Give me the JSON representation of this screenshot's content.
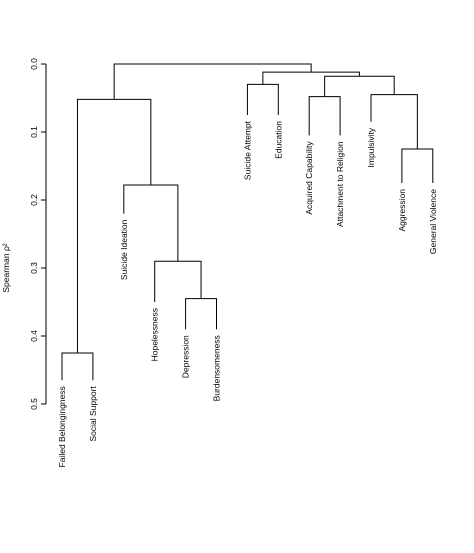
{
  "chart_data": {
    "type": "dendrogram",
    "ylabel": "Spearman ρ²",
    "ylim": [
      0,
      0.5
    ],
    "y_reversed": true,
    "y_ticks": [
      {
        "value": 0.0,
        "label": "0.0"
      },
      {
        "value": 0.1,
        "label": "0.1"
      },
      {
        "value": 0.2,
        "label": "0.2"
      },
      {
        "value": 0.3,
        "label": "0.3"
      },
      {
        "value": 0.4,
        "label": "0.4"
      },
      {
        "value": 0.5,
        "label": "0.5"
      }
    ],
    "leaves": [
      {
        "id": "L0",
        "name": "Failed Belongingness",
        "height": 0.465
      },
      {
        "id": "L1",
        "name": "Social Support",
        "height": 0.465
      },
      {
        "id": "L2",
        "name": "Suicide Ideation",
        "height": 0.22
      },
      {
        "id": "L3",
        "name": "Hopelessness",
        "height": 0.35
      },
      {
        "id": "L4",
        "name": "Depression",
        "height": 0.39
      },
      {
        "id": "L5",
        "name": "Burdensomeness",
        "height": 0.39
      },
      {
        "id": "L6",
        "name": "Suicide Attempt",
        "height": 0.075
      },
      {
        "id": "L7",
        "name": "Education",
        "height": 0.075
      },
      {
        "id": "L8",
        "name": "Acquired Capability",
        "height": 0.105
      },
      {
        "id": "L9",
        "name": "Attachment to Religion",
        "height": 0.105
      },
      {
        "id": "L10",
        "name": "Impulsivity",
        "height": 0.085
      },
      {
        "id": "L11",
        "name": "Aggression",
        "height": 0.175
      },
      {
        "id": "L12",
        "name": "General Violence",
        "height": 0.175
      }
    ],
    "merges": [
      {
        "id": "M1",
        "left": "L4",
        "right": "L5",
        "value": 0.345
      },
      {
        "id": "M2",
        "left": "L3",
        "right": "M1",
        "value": 0.29
      },
      {
        "id": "M3",
        "left": "L2",
        "right": "M2",
        "value": 0.178
      },
      {
        "id": "M4",
        "left": "L0",
        "right": "L1",
        "value": 0.425
      },
      {
        "id": "M5",
        "left": "M4",
        "right": "M3",
        "value": 0.052
      },
      {
        "id": "M6",
        "left": "L6",
        "right": "L7",
        "value": 0.03
      },
      {
        "id": "M7",
        "left": "L11",
        "right": "L12",
        "value": 0.125
      },
      {
        "id": "M8",
        "left": "L10",
        "right": "M7",
        "value": 0.045
      },
      {
        "id": "M9",
        "left": "L8",
        "right": "L9",
        "value": 0.048
      },
      {
        "id": "M10",
        "left": "M9",
        "right": "M8",
        "value": 0.018
      },
      {
        "id": "M11",
        "left": "M6",
        "right": "M10",
        "value": 0.012
      },
      {
        "id": "M12",
        "left": "M5",
        "right": "M11",
        "value": 0.0
      }
    ]
  }
}
